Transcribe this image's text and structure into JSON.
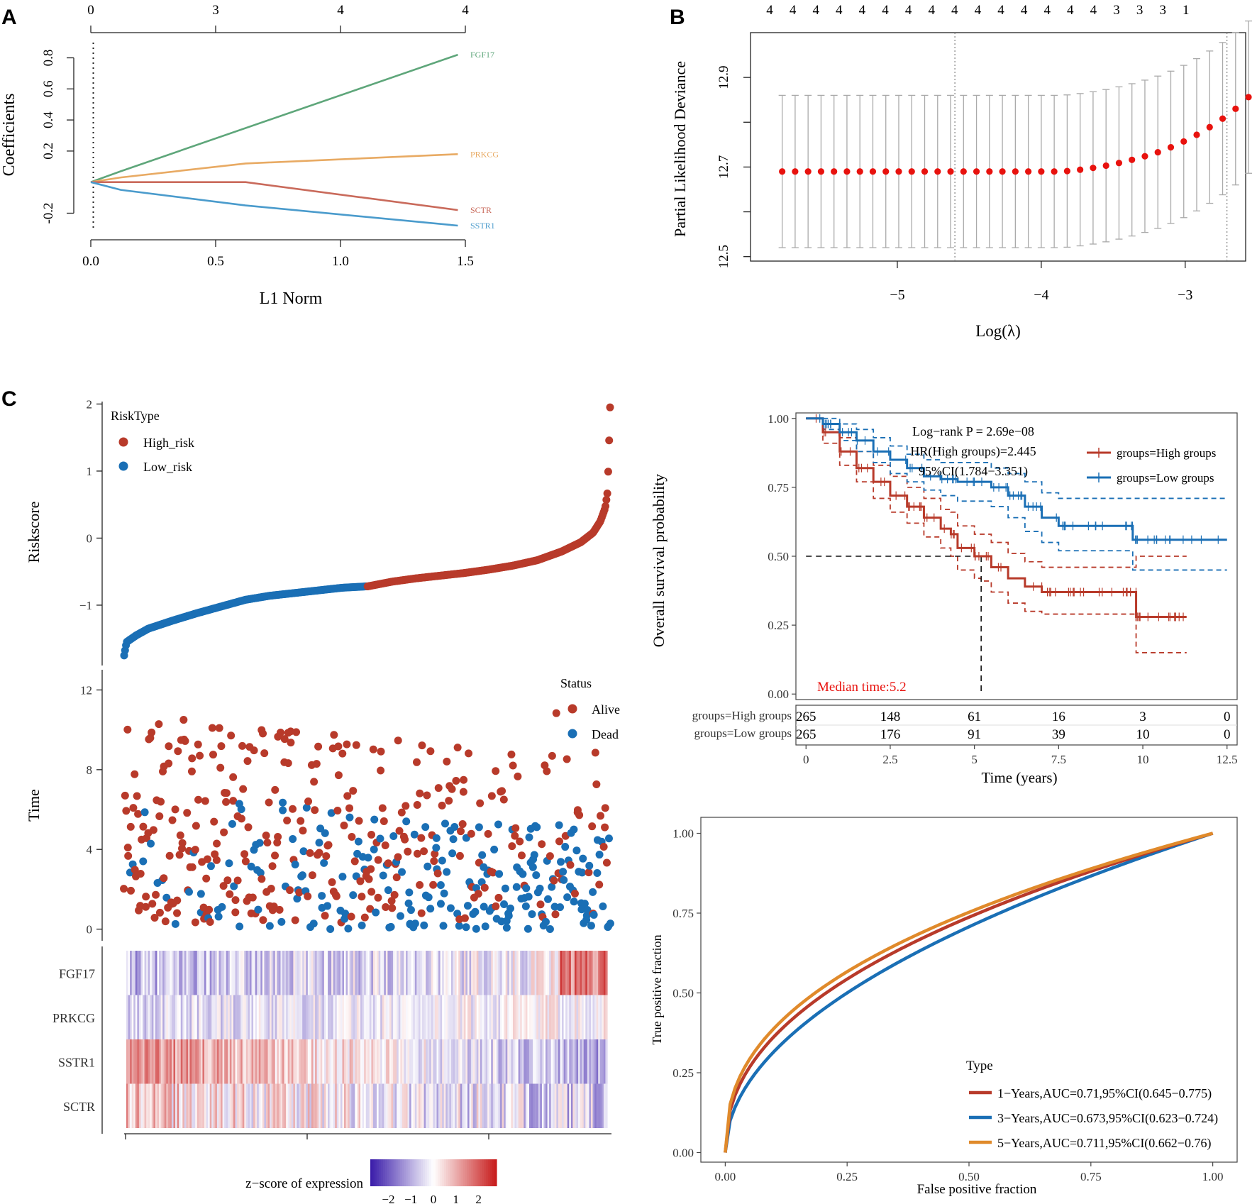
{
  "panel_labels": {
    "a": "A",
    "b": "B",
    "c": "C"
  },
  "colors": {
    "fgf17": "#5ea67a",
    "prkcg": "#e8aa63",
    "sctr": "#c96a5b",
    "sstr1": "#4a9bcc",
    "red": "#e8120e",
    "high": "#b83a2a",
    "low": "#1a6fb5",
    "roc1": "#b83a2a",
    "roc3": "#1a6fb5",
    "roc5": "#e08a2b",
    "median_text": "#e8120e"
  },
  "chart_data": [
    {
      "id": "A",
      "type": "line",
      "xlabel": "L1 Norm",
      "ylabel": "Coefficients",
      "xlim": [
        0,
        1.5
      ],
      "ylim": [
        -0.28,
        0.88
      ],
      "xticks": [
        "0.0",
        "0.5",
        "1.0",
        "1.5"
      ],
      "yticks": [
        "-0.2",
        "0.2",
        "0.4",
        "0.6",
        "0.8"
      ],
      "top_ticks": [
        "0",
        "3",
        "4",
        "4"
      ],
      "vline_x": 0.01,
      "series": [
        {
          "name": "FGF17",
          "x": [
            0,
            0.12,
            1.47
          ],
          "y": [
            0,
            0.07,
            0.82
          ]
        },
        {
          "name": "PRKCG",
          "x": [
            0,
            0.12,
            0.62,
            1.47
          ],
          "y": [
            0,
            0.03,
            0.12,
            0.18
          ]
        },
        {
          "name": "SCTR",
          "x": [
            0,
            0.62,
            1.47
          ],
          "y": [
            0,
            0,
            -0.18
          ]
        },
        {
          "name": "SSTR1",
          "x": [
            0,
            0.12,
            0.62,
            1.47
          ],
          "y": [
            0,
            -0.05,
            -0.15,
            -0.28
          ]
        }
      ]
    },
    {
      "id": "B",
      "type": "scatter",
      "xlabel": "Log(λ)",
      "ylabel": "Partial Likelihood Deviance",
      "xlim": [
        -6.02,
        -2.58
      ],
      "ylim": [
        12.49,
        13.0
      ],
      "xticks": [
        "−5",
        "−4",
        "−3"
      ],
      "yticks": [
        "12.5",
        "12.7",
        "12.9"
      ],
      "top_ticks": [
        "4",
        "4",
        "4",
        "4",
        "4",
        "4",
        "4",
        "4",
        "4",
        "4",
        "4",
        "4",
        "4",
        "4",
        "4",
        "3",
        "3",
        "3",
        "1"
      ],
      "vlines": [
        -4.6,
        -2.71
      ],
      "x": [
        -5.8,
        -5.71,
        -5.62,
        -5.53,
        -5.44,
        -5.35,
        -5.26,
        -5.17,
        -5.08,
        -4.99,
        -4.9,
        -4.81,
        -4.72,
        -4.63,
        -4.54,
        -4.45,
        -4.36,
        -4.27,
        -4.18,
        -4.09,
        -4.0,
        -3.91,
        -3.82,
        -3.73,
        -3.64,
        -3.55,
        -3.46,
        -3.37,
        -3.28,
        -3.19,
        -3.1,
        -3.01,
        -2.92,
        -2.83,
        -2.74,
        -2.65,
        -2.56,
        -2.47
      ],
      "y": [
        12.69,
        12.69,
        12.69,
        12.69,
        12.69,
        12.69,
        12.69,
        12.69,
        12.69,
        12.69,
        12.69,
        12.69,
        12.69,
        12.69,
        12.69,
        12.69,
        12.69,
        12.69,
        12.69,
        12.69,
        12.69,
        12.69,
        12.691,
        12.694,
        12.698,
        12.703,
        12.709,
        12.716,
        12.724,
        12.733,
        12.744,
        12.757,
        12.772,
        12.789,
        12.808,
        12.83,
        12.856,
        12.885
      ],
      "err_low": [
        12.52,
        12.52,
        12.52,
        12.52,
        12.52,
        12.52,
        12.52,
        12.52,
        12.52,
        12.52,
        12.52,
        12.52,
        12.52,
        12.52,
        12.52,
        12.52,
        12.52,
        12.52,
        12.52,
        12.52,
        12.52,
        12.52,
        12.521,
        12.524,
        12.528,
        12.533,
        12.539,
        12.546,
        12.554,
        12.563,
        12.574,
        12.587,
        12.602,
        12.619,
        12.638,
        12.66,
        12.686,
        12.715
      ],
      "err_high": [
        12.86,
        12.86,
        12.86,
        12.86,
        12.86,
        12.86,
        12.86,
        12.86,
        12.86,
        12.86,
        12.86,
        12.86,
        12.86,
        12.86,
        12.86,
        12.86,
        12.86,
        12.86,
        12.86,
        12.86,
        12.86,
        12.86,
        12.861,
        12.864,
        12.868,
        12.873,
        12.879,
        12.886,
        12.894,
        12.903,
        12.914,
        12.927,
        12.942,
        12.959,
        12.978,
        13.0,
        13.026,
        13.055
      ]
    },
    {
      "id": "C-riskscore",
      "type": "scatter",
      "ylabel": "Riskscore",
      "yticks": [
        "−1",
        "0",
        "1",
        "2"
      ],
      "ylim": [
        -1.9,
        2.1
      ],
      "legend_title": "RiskType",
      "series": [
        {
          "name": "High_risk"
        },
        {
          "name": "Low_risk"
        }
      ],
      "n_low": 265,
      "n_high": 265,
      "curve_low": [
        [
          0,
          -1.75
        ],
        [
          0.01,
          -1.55
        ],
        [
          0.05,
          -1.45
        ],
        [
          0.1,
          -1.35
        ],
        [
          0.2,
          -1.23
        ],
        [
          0.3,
          -1.12
        ],
        [
          0.4,
          -1.02
        ],
        [
          0.5,
          -0.92
        ],
        [
          0.6,
          -0.86
        ],
        [
          0.7,
          -0.82
        ],
        [
          0.8,
          -0.78
        ],
        [
          0.9,
          -0.74
        ],
        [
          1.0,
          -0.72
        ]
      ],
      "curve_high": [
        [
          0,
          -0.72
        ],
        [
          0.1,
          -0.65
        ],
        [
          0.2,
          -0.6
        ],
        [
          0.3,
          -0.56
        ],
        [
          0.4,
          -0.52
        ],
        [
          0.5,
          -0.47
        ],
        [
          0.6,
          -0.41
        ],
        [
          0.7,
          -0.33
        ],
        [
          0.8,
          -0.2
        ],
        [
          0.88,
          -0.06
        ],
        [
          0.93,
          0.08
        ],
        [
          0.96,
          0.25
        ],
        [
          0.98,
          0.45
        ],
        [
          0.99,
          0.7
        ],
        [
          0.995,
          1.3
        ],
        [
          1.0,
          1.95
        ]
      ]
    },
    {
      "id": "C-time",
      "type": "scatter",
      "ylabel": "Time",
      "yticks": [
        "0",
        "4",
        "8",
        "12"
      ],
      "ylim": [
        -0.3,
        12.8
      ],
      "legend_title": "Status",
      "series": [
        {
          "name": "Alive"
        },
        {
          "name": "Dead"
        }
      ]
    },
    {
      "id": "C-heatmap",
      "type": "heatmap",
      "rows": [
        "FGF17",
        "PRKCG",
        "SSTR1",
        "SCTR"
      ],
      "colorbar_title": "z−score of expression",
      "colorbar_ticks": [
        "−2",
        "−1",
        "0",
        "1",
        "2"
      ],
      "colorbar_range": [
        -2.8,
        2.8
      ]
    },
    {
      "id": "KM",
      "type": "line",
      "xlabel": "Time (years)",
      "ylabel": "Overall survival probability",
      "xlim": [
        -0.3,
        12.8
      ],
      "ylim": [
        -0.02,
        1.02
      ],
      "xticks": [
        "0",
        "2.5",
        "5",
        "7.5",
        "10",
        "12.5"
      ],
      "yticks": [
        "0.00",
        "0.25",
        "0.50",
        "0.75",
        "1.00"
      ],
      "annotations": [
        "Log−rank P = 2.69e−08",
        "HR(High groups)=2.445",
        "95%CI(1.784−3.351)"
      ],
      "median_text": "Median time:5.2",
      "median_x": 5.2,
      "series": [
        {
          "name": "groups=High groups",
          "x": [
            0,
            0.5,
            1,
            1.5,
            2,
            2.5,
            3,
            3.5,
            4,
            4.3,
            4.5,
            5,
            5.2,
            5.5,
            6,
            6.5,
            7,
            8,
            9,
            9.8,
            9.8,
            11.3
          ],
          "y": [
            1,
            0.95,
            0.88,
            0.82,
            0.77,
            0.72,
            0.68,
            0.64,
            0.6,
            0.58,
            0.53,
            0.5,
            0.5,
            0.46,
            0.42,
            0.39,
            0.37,
            0.37,
            0.37,
            0.37,
            0.28,
            0.28
          ],
          "ci_low": [
            1,
            0.91,
            0.83,
            0.77,
            0.71,
            0.66,
            0.62,
            0.57,
            0.53,
            0.5,
            0.45,
            0.42,
            0.41,
            0.37,
            0.33,
            0.3,
            0.29,
            0.29,
            0.29,
            0.29,
            0.15,
            0.15
          ],
          "ci_high": [
            1,
            0.98,
            0.93,
            0.88,
            0.83,
            0.79,
            0.75,
            0.71,
            0.67,
            0.66,
            0.61,
            0.58,
            0.58,
            0.55,
            0.51,
            0.48,
            0.46,
            0.46,
            0.46,
            0.5,
            0.5,
            0.5
          ]
        },
        {
          "name": "groups=Low groups",
          "x": [
            0,
            0.5,
            1,
            1.5,
            2,
            2.5,
            3,
            3.5,
            4,
            4.5,
            5,
            5.5,
            6,
            6.5,
            7,
            7.5,
            8,
            9,
            9.7,
            9.7,
            12.5
          ],
          "y": [
            1,
            0.98,
            0.95,
            0.92,
            0.88,
            0.85,
            0.82,
            0.79,
            0.78,
            0.77,
            0.77,
            0.75,
            0.72,
            0.68,
            0.64,
            0.61,
            0.61,
            0.61,
            0.61,
            0.56,
            0.56
          ],
          "ci_low": [
            1,
            0.96,
            0.92,
            0.88,
            0.84,
            0.8,
            0.77,
            0.74,
            0.72,
            0.7,
            0.7,
            0.68,
            0.64,
            0.59,
            0.55,
            0.52,
            0.52,
            0.52,
            0.52,
            0.45,
            0.45
          ],
          "ci_high": [
            1,
            1,
            0.98,
            0.96,
            0.93,
            0.9,
            0.87,
            0.85,
            0.84,
            0.84,
            0.84,
            0.82,
            0.8,
            0.77,
            0.73,
            0.71,
            0.71,
            0.71,
            0.71,
            0.71,
            0.71
          ]
        }
      ],
      "risk_table": {
        "rows": [
          "groups=High groups",
          "groups=Low groups"
        ],
        "times": [
          0,
          2.5,
          5,
          7.5,
          10,
          12.5
        ],
        "values": [
          [
            "265",
            "148",
            "61",
            "16",
            "3",
            "0"
          ],
          [
            "265",
            "176",
            "91",
            "39",
            "10",
            "0"
          ]
        ]
      }
    },
    {
      "id": "ROC",
      "type": "line",
      "xlabel": "False positive fraction",
      "ylabel": "True positive fraction",
      "xlim": [
        -0.05,
        1.05
      ],
      "ylim": [
        -0.03,
        1.05
      ],
      "xticks": [
        "0.00",
        "0.25",
        "0.50",
        "0.75",
        "1.00"
      ],
      "yticks": [
        "0.00",
        "0.25",
        "0.50",
        "0.75",
        "1.00"
      ],
      "legend_title": "Type",
      "series": [
        {
          "name": "1−Years,AUC=0.71,95%CI(0.645−0.775)",
          "power": 0.44
        },
        {
          "name": "3−Years,AUC=0.673,95%CI(0.623−0.724)",
          "power": 0.5
        },
        {
          "name": "5−Years,AUC=0.711,95%CI(0.662−0.76)",
          "power": 0.41
        }
      ]
    }
  ]
}
